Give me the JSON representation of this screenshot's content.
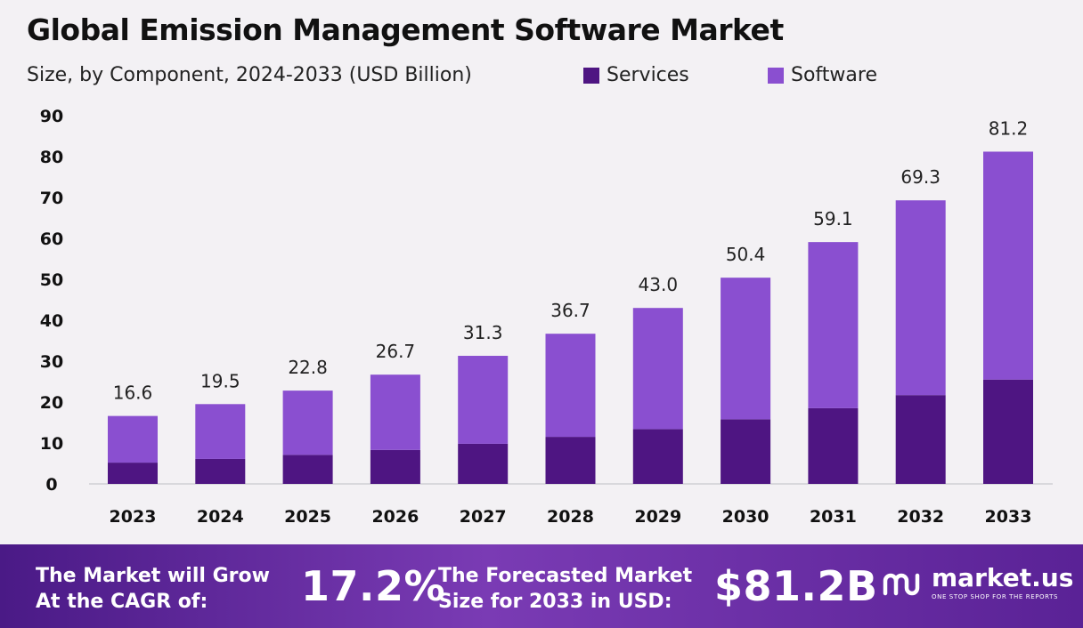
{
  "header": {
    "title": "Global Emission Management Software Market",
    "subtitle": "Size, by Component, 2024-2033 (USD Billion)"
  },
  "legend": [
    {
      "label": "Services",
      "color": "#4e1582"
    },
    {
      "label": "Software",
      "color": "#8a4fd0"
    }
  ],
  "chart_data": {
    "type": "bar",
    "stacked": true,
    "title": "Global Emission Management Software Market",
    "subtitle": "Size, by Component, 2024-2033 (USD Billion)",
    "categories": [
      "2023",
      "2024",
      "2025",
      "2026",
      "2027",
      "2028",
      "2029",
      "2030",
      "2031",
      "2032",
      "2033"
    ],
    "series": [
      {
        "name": "Services",
        "values": [
          5.2,
          6.1,
          7.1,
          8.3,
          9.8,
          11.5,
          13.4,
          15.8,
          18.5,
          21.7,
          25.5
        ]
      },
      {
        "name": "Software",
        "values": [
          11.4,
          13.4,
          15.7,
          18.4,
          21.5,
          25.2,
          29.6,
          34.6,
          40.6,
          47.6,
          55.7
        ]
      }
    ],
    "totals": [
      "16.6",
      "19.5",
      "22.8",
      "26.7",
      "31.3",
      "36.7",
      "43.0",
      "50.4",
      "59.1",
      "69.3",
      "81.2"
    ],
    "ylim": [
      0,
      90
    ],
    "yticks": [
      "0",
      "10",
      "20",
      "30",
      "40",
      "50",
      "60",
      "70",
      "80",
      "90"
    ],
    "xlabel": "",
    "ylabel": "",
    "legend_position": "top-right",
    "grid": false
  },
  "footer": {
    "cagr_text_line1": "The Market will Grow",
    "cagr_text_line2": "At the CAGR of:",
    "cagr_value": "17.2%",
    "forecast_text_line1": "The Forecasted Market",
    "forecast_text_line2": "Size for 2033 in USD:",
    "forecast_value": "$81.2B",
    "brand_name": "market.us",
    "brand_tagline": "ONE STOP SHOP FOR THE REPORTS"
  }
}
